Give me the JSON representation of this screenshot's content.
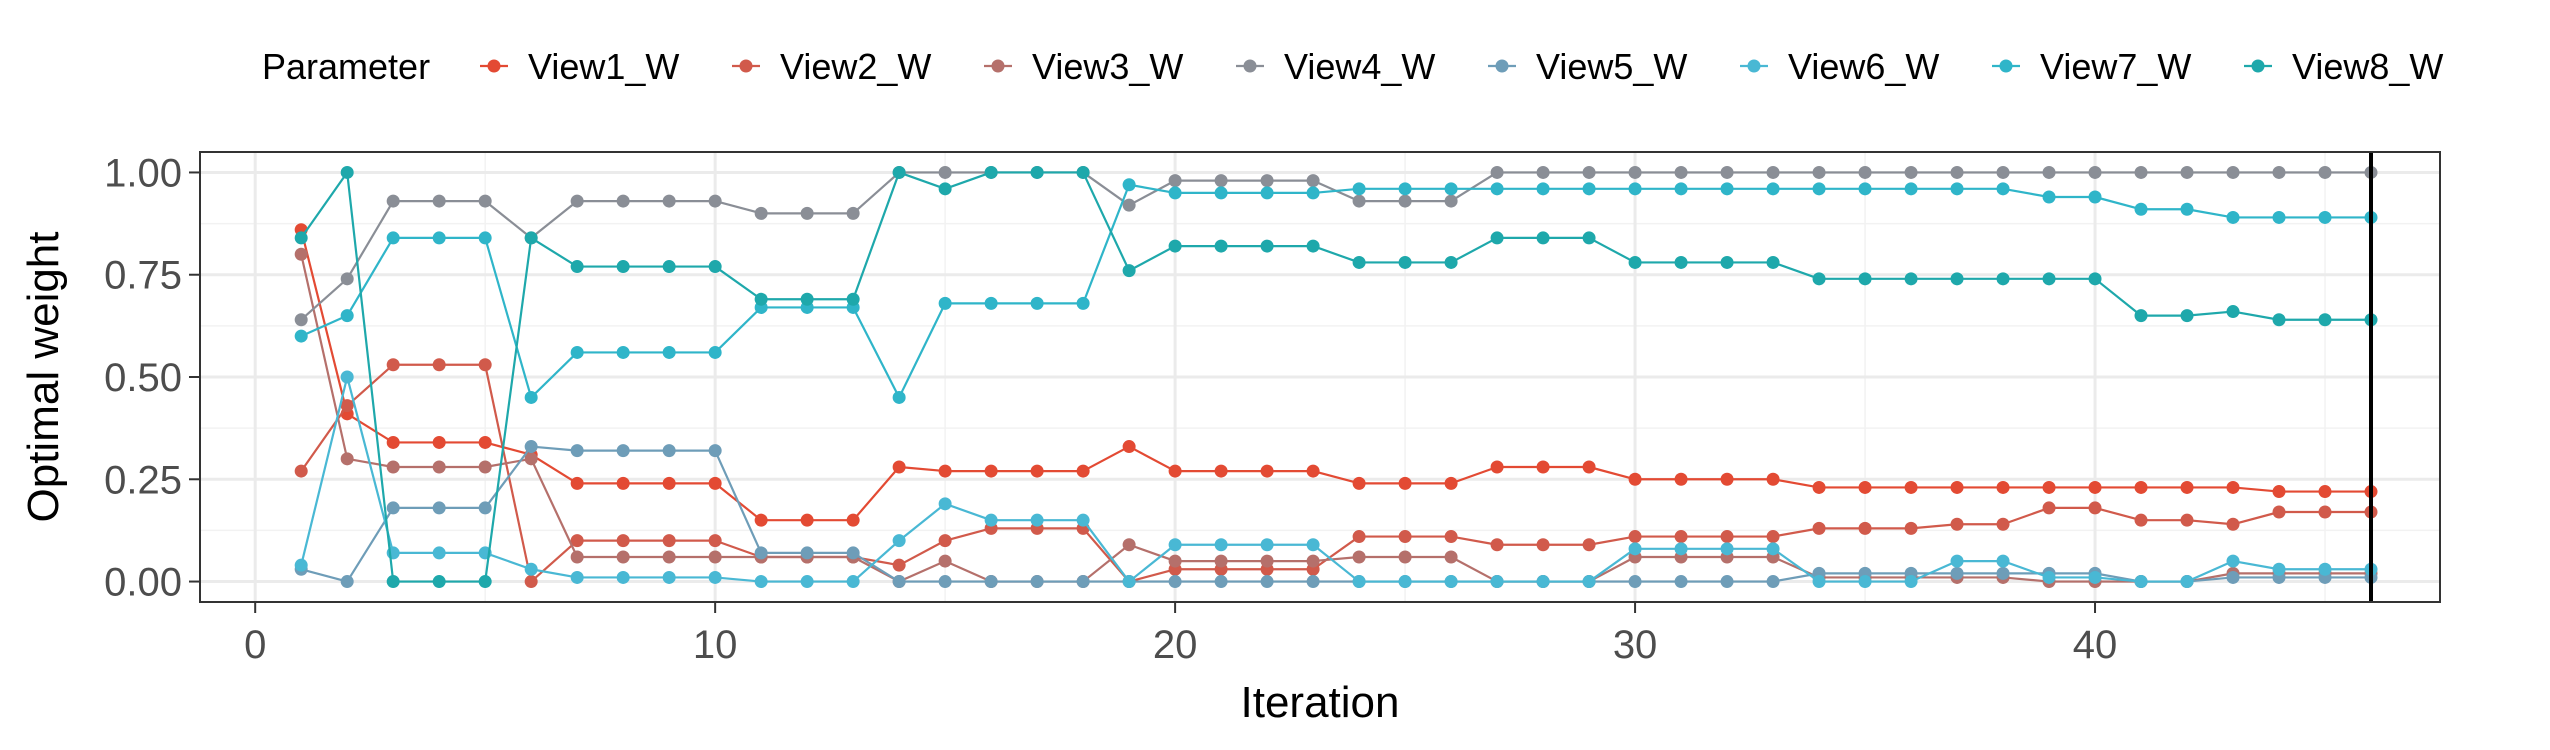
{
  "chart_data": {
    "type": "line",
    "title": "",
    "xlabel": "Iteration",
    "ylabel": "Optimal weight",
    "legend_title": "Parameter",
    "legend_position": "top",
    "grid": true,
    "xlim": [
      -1.2,
      47.5
    ],
    "ylim": [
      -0.05,
      1.05
    ],
    "x_ticks": [
      0,
      10,
      20,
      30,
      40
    ],
    "x_tick_labels": [
      "0",
      "10",
      "20",
      "30",
      "40"
    ],
    "y_ticks": [
      0.0,
      0.25,
      0.5,
      0.75,
      1.0
    ],
    "y_tick_labels": [
      "0.00",
      "0.25",
      "0.50",
      "0.75",
      "1.00"
    ],
    "vline_x": 46,
    "x": [
      1,
      2,
      3,
      4,
      5,
      6,
      7,
      8,
      9,
      10,
      11,
      12,
      13,
      14,
      15,
      16,
      17,
      18,
      19,
      20,
      21,
      22,
      23,
      24,
      25,
      26,
      27,
      28,
      29,
      30,
      31,
      32,
      33,
      34,
      35,
      36,
      37,
      38,
      39,
      40,
      41,
      42,
      43,
      44,
      45,
      46
    ],
    "series": [
      {
        "name": "View1_W",
        "color": "#E34A33",
        "values": [
          0.86,
          0.41,
          0.34,
          0.34,
          0.34,
          0.31,
          0.24,
          0.24,
          0.24,
          0.24,
          0.15,
          0.15,
          0.15,
          0.28,
          0.27,
          0.27,
          0.27,
          0.27,
          0.33,
          0.27,
          0.27,
          0.27,
          0.27,
          0.24,
          0.24,
          0.24,
          0.28,
          0.28,
          0.28,
          0.25,
          0.25,
          0.25,
          0.25,
          0.23,
          0.23,
          0.23,
          0.23,
          0.23,
          0.23,
          0.23,
          0.23,
          0.23,
          0.23,
          0.22,
          0.22,
          0.22
        ]
      },
      {
        "name": "View2_W",
        "color": "#D15A4B",
        "values": [
          0.27,
          0.43,
          0.53,
          0.53,
          0.53,
          0.0,
          0.1,
          0.1,
          0.1,
          0.1,
          0.06,
          0.06,
          0.06,
          0.04,
          0.1,
          0.13,
          0.13,
          0.13,
          0.0,
          0.03,
          0.03,
          0.03,
          0.03,
          0.11,
          0.11,
          0.11,
          0.09,
          0.09,
          0.09,
          0.11,
          0.11,
          0.11,
          0.11,
          0.13,
          0.13,
          0.13,
          0.14,
          0.14,
          0.18,
          0.18,
          0.15,
          0.15,
          0.14,
          0.17,
          0.17,
          0.17
        ]
      },
      {
        "name": "View3_W",
        "color": "#B5706B",
        "values": [
          0.8,
          0.3,
          0.28,
          0.28,
          0.28,
          0.3,
          0.06,
          0.06,
          0.06,
          0.06,
          0.06,
          0.06,
          0.06,
          0.0,
          0.05,
          0.0,
          0.0,
          0.0,
          0.09,
          0.05,
          0.05,
          0.05,
          0.05,
          0.06,
          0.06,
          0.06,
          0.0,
          0.0,
          0.0,
          0.06,
          0.06,
          0.06,
          0.06,
          0.01,
          0.01,
          0.01,
          0.01,
          0.01,
          0.0,
          0.0,
          0.0,
          0.0,
          0.02,
          0.02,
          0.02,
          0.02
        ]
      },
      {
        "name": "View4_W",
        "color": "#8A8E96",
        "values": [
          0.64,
          0.74,
          0.93,
          0.93,
          0.93,
          0.84,
          0.93,
          0.93,
          0.93,
          0.93,
          0.9,
          0.9,
          0.9,
          1.0,
          1.0,
          1.0,
          1.0,
          1.0,
          0.92,
          0.98,
          0.98,
          0.98,
          0.98,
          0.93,
          0.93,
          0.93,
          1.0,
          1.0,
          1.0,
          1.0,
          1.0,
          1.0,
          1.0,
          1.0,
          1.0,
          1.0,
          1.0,
          1.0,
          1.0,
          1.0,
          1.0,
          1.0,
          1.0,
          1.0,
          1.0,
          1.0
        ]
      },
      {
        "name": "View5_W",
        "color": "#6E9DB8",
        "values": [
          0.03,
          0.0,
          0.18,
          0.18,
          0.18,
          0.33,
          0.32,
          0.32,
          0.32,
          0.32,
          0.07,
          0.07,
          0.07,
          0.0,
          0.0,
          0.0,
          0.0,
          0.0,
          0.0,
          0.0,
          0.0,
          0.0,
          0.0,
          0.0,
          0.0,
          0.0,
          0.0,
          0.0,
          0.0,
          0.0,
          0.0,
          0.0,
          0.0,
          0.02,
          0.02,
          0.02,
          0.02,
          0.02,
          0.02,
          0.02,
          0.0,
          0.0,
          0.01,
          0.01,
          0.01,
          0.01
        ]
      },
      {
        "name": "View6_W",
        "color": "#49B8D4",
        "values": [
          0.04,
          0.5,
          0.07,
          0.07,
          0.07,
          0.03,
          0.01,
          0.01,
          0.01,
          0.01,
          0.0,
          0.0,
          0.0,
          0.1,
          0.19,
          0.15,
          0.15,
          0.15,
          0.0,
          0.09,
          0.09,
          0.09,
          0.09,
          0.0,
          0.0,
          0.0,
          0.0,
          0.0,
          0.0,
          0.08,
          0.08,
          0.08,
          0.08,
          0.0,
          0.0,
          0.0,
          0.05,
          0.05,
          0.01,
          0.01,
          0.0,
          0.0,
          0.05,
          0.03,
          0.03,
          0.03
        ]
      },
      {
        "name": "View7_W",
        "color": "#2FB5C9",
        "values": [
          0.6,
          0.65,
          0.84,
          0.84,
          0.84,
          0.45,
          0.56,
          0.56,
          0.56,
          0.56,
          0.67,
          0.67,
          0.67,
          0.45,
          0.68,
          0.68,
          0.68,
          0.68,
          0.97,
          0.95,
          0.95,
          0.95,
          0.95,
          0.96,
          0.96,
          0.96,
          0.96,
          0.96,
          0.96,
          0.96,
          0.96,
          0.96,
          0.96,
          0.96,
          0.96,
          0.96,
          0.96,
          0.96,
          0.94,
          0.94,
          0.91,
          0.91,
          0.89,
          0.89,
          0.89,
          0.89
        ]
      },
      {
        "name": "View8_W",
        "color": "#1EA8AB",
        "values": [
          0.84,
          1.0,
          0.0,
          0.0,
          0.0,
          0.84,
          0.77,
          0.77,
          0.77,
          0.77,
          0.69,
          0.69,
          0.69,
          1.0,
          0.96,
          1.0,
          1.0,
          1.0,
          0.76,
          0.82,
          0.82,
          0.82,
          0.82,
          0.78,
          0.78,
          0.78,
          0.84,
          0.84,
          0.84,
          0.78,
          0.78,
          0.78,
          0.78,
          0.74,
          0.74,
          0.74,
          0.74,
          0.74,
          0.74,
          0.74,
          0.65,
          0.65,
          0.66,
          0.64,
          0.64,
          0.64
        ]
      }
    ]
  }
}
